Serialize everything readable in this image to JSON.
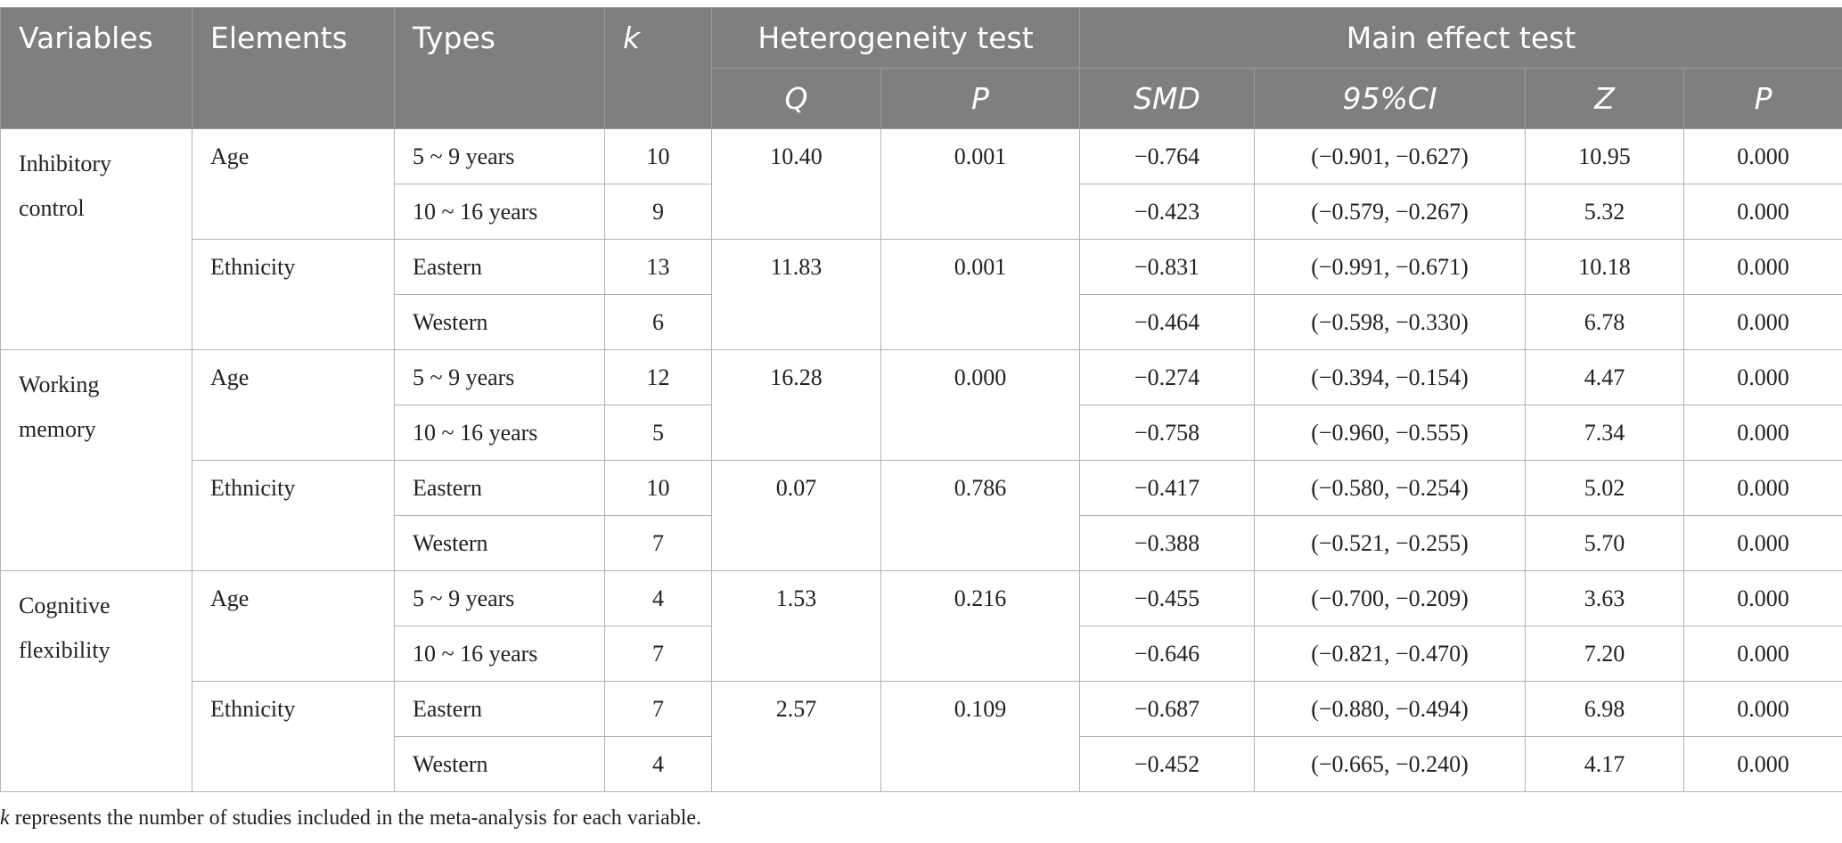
{
  "header": {
    "variables": "Variables",
    "elements": "Elements",
    "types": "Types",
    "k": "k",
    "heterogeneity_group": "Heterogeneity test",
    "main_effect_group": "Main effect test",
    "q": "Q",
    "p_het": "P",
    "smd": "SMD",
    "ci": "95%CI",
    "z": "Z",
    "p_main": "P"
  },
  "groups": [
    {
      "variable": "Inhibitory control",
      "rows": [
        {
          "element": "Age",
          "type": "5 ~ 9 years",
          "k": "10",
          "q": "10.40",
          "p_het": "0.001",
          "smd": "−0.764",
          "ci": "(−0.901, −0.627)",
          "z": "10.95",
          "p_main": "0.000"
        },
        {
          "element": "",
          "type": "10 ~ 16 years",
          "k": "9",
          "q": "",
          "p_het": "",
          "smd": "−0.423",
          "ci": "(−0.579, −0.267)",
          "z": "5.32",
          "p_main": "0.000"
        },
        {
          "element": "Ethnicity",
          "type": "Eastern",
          "k": "13",
          "q": "11.83",
          "p_het": "0.001",
          "smd": "−0.831",
          "ci": "(−0.991, −0.671)",
          "z": "10.18",
          "p_main": "0.000"
        },
        {
          "element": "",
          "type": "Western",
          "k": "6",
          "q": "",
          "p_het": "",
          "smd": "−0.464",
          "ci": "(−0.598, −0.330)",
          "z": "6.78",
          "p_main": "0.000"
        }
      ]
    },
    {
      "variable": "Working memory",
      "rows": [
        {
          "element": "Age",
          "type": "5 ~ 9 years",
          "k": "12",
          "q": "16.28",
          "p_het": "0.000",
          "smd": "−0.274",
          "ci": "(−0.394, −0.154)",
          "z": "4.47",
          "p_main": "0.000"
        },
        {
          "element": "",
          "type": "10 ~ 16 years",
          "k": "5",
          "q": "",
          "p_het": "",
          "smd": "−0.758",
          "ci": "(−0.960, −0.555)",
          "z": "7.34",
          "p_main": "0.000"
        },
        {
          "element": "Ethnicity",
          "type": "Eastern",
          "k": "10",
          "q": "0.07",
          "p_het": "0.786",
          "smd": "−0.417",
          "ci": "(−0.580, −0.254)",
          "z": "5.02",
          "p_main": "0.000"
        },
        {
          "element": "",
          "type": "Western",
          "k": "7",
          "q": "",
          "p_het": "",
          "smd": "−0.388",
          "ci": "(−0.521, −0.255)",
          "z": "5.70",
          "p_main": "0.000"
        }
      ]
    },
    {
      "variable": "Cognitive flexibility",
      "rows": [
        {
          "element": "Age",
          "type": "5 ~ 9 years",
          "k": "4",
          "q": "1.53",
          "p_het": "0.216",
          "smd": "−0.455",
          "ci": "(−0.700, −0.209)",
          "z": "3.63",
          "p_main": "0.000"
        },
        {
          "element": "",
          "type": "10 ~ 16 years",
          "k": "7",
          "q": "",
          "p_het": "",
          "smd": "−0.646",
          "ci": "(−0.821, −0.470)",
          "z": "7.20",
          "p_main": "0.000"
        },
        {
          "element": "Ethnicity",
          "type": "Eastern",
          "k": "7",
          "q": "2.57",
          "p_het": "0.109",
          "smd": "−0.687",
          "ci": "(−0.880, −0.494)",
          "z": "6.98",
          "p_main": "0.000"
        },
        {
          "element": "",
          "type": "Western",
          "k": "4",
          "q": "",
          "p_het": "",
          "smd": "−0.452",
          "ci": "(−0.665, −0.240)",
          "z": "4.17",
          "p_main": "0.000"
        }
      ]
    }
  ],
  "footnote": {
    "k": "k",
    "text": " represents the number of studies included in the meta-analysis for each variable."
  }
}
